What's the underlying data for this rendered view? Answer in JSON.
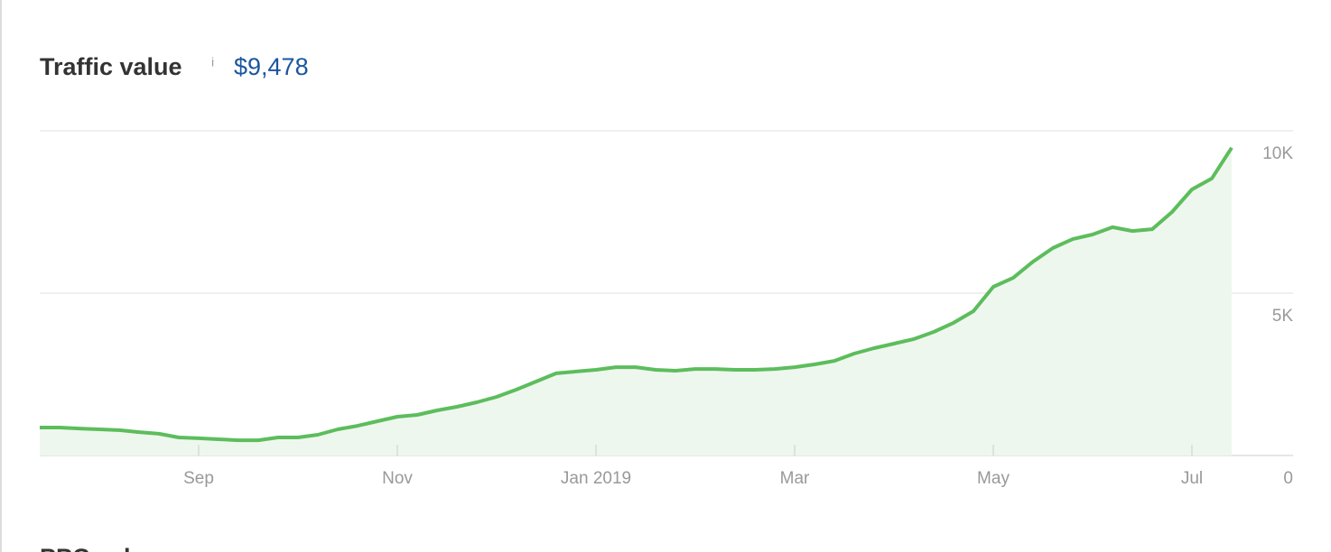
{
  "chart_data": {
    "type": "area",
    "title": "Traffic value",
    "info_icon": "i",
    "headline_value": "$9,478",
    "categories": [
      null,
      null,
      null,
      null,
      null,
      null,
      null,
      null,
      "Sep",
      null,
      null,
      null,
      null,
      null,
      null,
      null,
      null,
      null,
      "Nov",
      null,
      null,
      null,
      null,
      null,
      null,
      null,
      null,
      null,
      "Jan 2019",
      null,
      null,
      null,
      null,
      null,
      null,
      null,
      null,
      null,
      "Mar",
      null,
      null,
      null,
      null,
      null,
      null,
      null,
      null,
      null,
      "May",
      null,
      null,
      null,
      null,
      null,
      null,
      null,
      null,
      null,
      "Jul",
      null,
      null
    ],
    "values": [
      861,
      860,
      830,
      805,
      780,
      720,
      670,
      555,
      530,
      500,
      470,
      470,
      555,
      555,
      640,
      805,
      915,
      1055,
      1195,
      1250,
      1390,
      1500,
      1640,
      1805,
      2030,
      2280,
      2530,
      2585,
      2640,
      2720,
      2720,
      2640,
      2610,
      2665,
      2665,
      2640,
      2640,
      2665,
      2720,
      2805,
      2915,
      3140,
      3305,
      3445,
      3585,
      3805,
      4085,
      4445,
      5195,
      5470,
      5970,
      6390,
      6665,
      6805,
      7030,
      6915,
      6970,
      7500,
      8195,
      8530,
      9478
    ],
    "color": "#5cbd5c",
    "fill_color": "#eef7ee",
    "ylim": [
      0,
      10000
    ],
    "yticks": [
      0,
      {
        "value": 5000,
        "label": "5K"
      },
      {
        "value": 10000,
        "label": "10K"
      }
    ],
    "grid": true
  },
  "next_section_title": "PPC value"
}
